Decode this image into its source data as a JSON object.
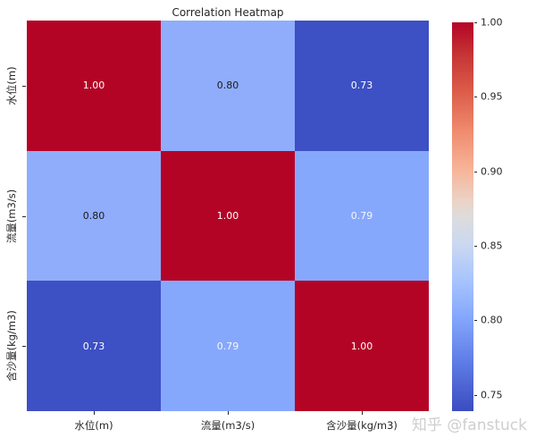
{
  "title": "Correlation Heatmap",
  "watermark": "知乎 @fanstuck",
  "chart_data": {
    "type": "heatmap",
    "title": "Correlation Heatmap",
    "colormap": "coolwarm",
    "categories": [
      "水位(m)",
      "流量(m3/s)",
      "含沙量(kg/m3)"
    ],
    "x_tick_labels": [
      "水位(m)",
      "流量(m3/s)",
      "含沙量(kg/m3)"
    ],
    "y_tick_labels": [
      "水位(m)",
      "流量(m3/s)",
      "含沙量(kg/m3)"
    ],
    "matrix": [
      [
        1.0,
        0.8,
        0.73
      ],
      [
        0.8,
        1.0,
        0.79
      ],
      [
        0.73,
        0.79,
        1.0
      ]
    ],
    "cell_labels": [
      [
        "1.00",
        "0.80",
        "0.73"
      ],
      [
        "0.80",
        "1.00",
        "0.79"
      ],
      [
        "0.73",
        "0.79",
        "1.00"
      ]
    ],
    "cell_colors": [
      [
        "#b40426",
        "#8fadfb",
        "#3d50c4"
      ],
      [
        "#8fadfb",
        "#b40426",
        "#86a8fc"
      ],
      [
        "#3d50c4",
        "#86a8fc",
        "#b40426"
      ]
    ],
    "cell_text_colors": [
      [
        "#ffffff",
        "#1a1a1a",
        "#ffffff"
      ],
      [
        "#1a1a1a",
        "#ffffff",
        "#f5f6fb"
      ],
      [
        "#ffffff",
        "#f5f6fb",
        "#ffffff"
      ]
    ],
    "colorbar": {
      "vmin": 0.739,
      "vmax": 1.0,
      "tick_labels": [
        "1.00",
        "0.95",
        "0.90",
        "0.85",
        "0.80",
        "0.75"
      ],
      "tick_values": [
        1.0,
        0.95,
        0.9,
        0.85,
        0.8,
        0.75
      ],
      "gradient": [
        {
          "pos": 0.0,
          "color": "#b40426"
        },
        {
          "pos": 0.08,
          "color": "#c53334"
        },
        {
          "pos": 0.18,
          "color": "#dc5d4a"
        },
        {
          "pos": 0.28,
          "color": "#f08b6e"
        },
        {
          "pos": 0.38,
          "color": "#f7b599"
        },
        {
          "pos": 0.46,
          "color": "#ead3c6"
        },
        {
          "pos": 0.5,
          "color": "#dddcdc"
        },
        {
          "pos": 0.57,
          "color": "#cbd8f0"
        },
        {
          "pos": 0.66,
          "color": "#a9c5fd"
        },
        {
          "pos": 0.76,
          "color": "#84a7fc"
        },
        {
          "pos": 0.87,
          "color": "#5f7ee7"
        },
        {
          "pos": 1.0,
          "color": "#3b4cc0"
        }
      ]
    }
  }
}
